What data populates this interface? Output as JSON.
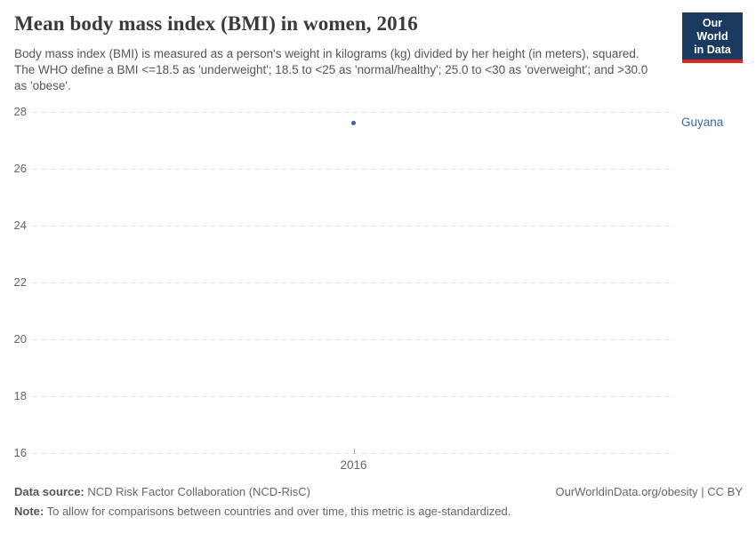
{
  "header": {
    "title": "Mean body mass index (BMI) in women, 2016",
    "subtitle": "Body mass index (BMI) is measured as a person's weight in kilograms (kg) divided by her height (in meters), squared. The WHO define a BMI <=18.5 as 'underweight'; 18.5 to <25 as 'normal/healthy'; 25.0 to <30 as 'overweight'; and >30.0 as 'obese'."
  },
  "logo": {
    "line1": "Our World",
    "line2": "in Data",
    "bg_color": "#1a3a5f",
    "stripe_color": "#dc2823"
  },
  "chart_data": {
    "type": "scatter",
    "title": "Mean body mass index (BMI) in women, 2016",
    "series": [
      {
        "name": "Guyana",
        "points": [
          {
            "x": 2016,
            "y": 27.6
          }
        ],
        "color": "#3d65a5"
      }
    ],
    "categories": [
      2016
    ],
    "xticks": [
      "2016"
    ],
    "yticks": [
      28,
      26,
      24,
      22,
      20,
      18,
      16
    ],
    "ylim": [
      16,
      28
    ],
    "xlabel": "",
    "ylabel": "",
    "grid": "horizontal-dashed",
    "legend_position": "entity-label-right",
    "grid_color": "#dddddd",
    "axis_text_color": "#666666"
  },
  "footer": {
    "datasource_label": "Data source:",
    "datasource_value": " NCD Risk Factor Collaboration (NCD-RisC)",
    "note_label": "Note:",
    "note_value": " To allow for comparisons between countries and over time, this metric is age-standardized.",
    "link": "OurWorldinData.org/obesity | CC BY"
  }
}
